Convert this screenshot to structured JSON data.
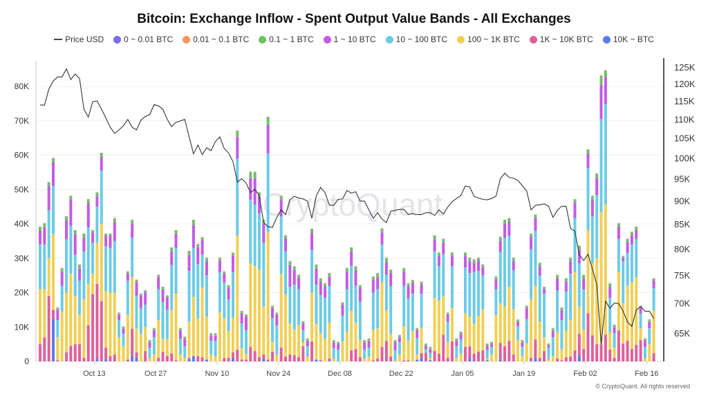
{
  "chart_data": {
    "type": "bar",
    "stacked": true,
    "title": "Bitcoin: Exchange Inflow - Spent Output Value Bands - All Exchanges",
    "legend": [
      {
        "name": "Price USD",
        "color": "#444444",
        "kind": "line"
      },
      {
        "name": "0 ~ 0.01 BTC",
        "color": "#7b6cf0"
      },
      {
        "name": "0.01 ~ 0.1 BTC",
        "color": "#f4975a"
      },
      {
        "name": "0.1 ~ 1 BTC",
        "color": "#6fc165"
      },
      {
        "name": "1 ~ 10 BTC",
        "color": "#c45ae6"
      },
      {
        "name": "10 ~ 100 BTC",
        "color": "#6ccbe6"
      },
      {
        "name": "100 ~ 1K BTC",
        "color": "#f2cf55"
      },
      {
        "name": "1K ~ 10K BTC",
        "color": "#e0609a"
      },
      {
        "name": "10K ~ BTC",
        "color": "#5b7be8"
      }
    ],
    "legend_position": "top",
    "y_left": {
      "ylim": [
        0,
        85000
      ],
      "ticks": [
        0,
        10000,
        20000,
        30000,
        40000,
        50000,
        60000,
        70000,
        80000
      ],
      "tick_labels": [
        "0",
        "10K",
        "20K",
        "30K",
        "40K",
        "50K",
        "60K",
        "70K",
        "80K"
      ]
    },
    "y_right": {
      "scale": "log",
      "ylim": [
        60500,
        128000
      ],
      "ticks": [
        65000,
        70000,
        75000,
        80000,
        85000,
        90000,
        95000,
        100000,
        105000,
        110000,
        115000,
        120000,
        125000
      ],
      "tick_labels": [
        "65K",
        "70K",
        "75K",
        "80K",
        "85K",
        "90K",
        "95K",
        "100K",
        "105K",
        "110K",
        "115K",
        "120K",
        "125K"
      ]
    },
    "x_ticks": [
      {
        "day_index": 13,
        "label": "Oct 13"
      },
      {
        "day_index": 27,
        "label": "Oct 27"
      },
      {
        "day_index": 41,
        "label": "Nov 10"
      },
      {
        "day_index": 55,
        "label": "Nov 24"
      },
      {
        "day_index": 69,
        "label": "Dec 08"
      },
      {
        "day_index": 83,
        "label": "Dec 22"
      },
      {
        "day_index": 97,
        "label": "Jan 05"
      },
      {
        "day_index": 111,
        "label": "Jan 19"
      },
      {
        "day_index": 125,
        "label": "Feb 02"
      },
      {
        "day_index": 139,
        "label": "Feb 16"
      }
    ],
    "grid": true,
    "units": "K BTC",
    "columns": [
      "10K ~ BTC",
      "1K ~ 10K BTC",
      "100 ~ 1K BTC",
      "10 ~ 100 BTC",
      "1 ~ 10 BTC",
      "0.1 ~ 1 BTC"
    ],
    "minor_bands_per_day": {
      "0.01 ~ 0.1 BTC": 0.15,
      "0 ~ 0.01 BTC": 0.03
    },
    "rows": [
      [
        0,
        5,
        16,
        13,
        4,
        1
      ],
      [
        0,
        7,
        14,
        13,
        5,
        1
      ],
      [
        0,
        19,
        11,
        14,
        7,
        1
      ],
      [
        12.5,
        2.5,
        22,
        14,
        7,
        1
      ],
      [
        0,
        0.3,
        6.7,
        5,
        3,
        0.5
      ],
      [
        0,
        0,
        14.5,
        7.5,
        4,
        1
      ],
      [
        0,
        2.6,
        17.4,
        15.5,
        5.5,
        1
      ],
      [
        0,
        4.5,
        21,
        14,
        7.5,
        1
      ],
      [
        0,
        5,
        14,
        12,
        6,
        1
      ],
      [
        0,
        5,
        8.5,
        10,
        3.5,
        1
      ],
      [
        0,
        1,
        17,
        14,
        4,
        1
      ],
      [
        0,
        10.5,
        12,
        16.5,
        7,
        1
      ],
      [
        0,
        19.5,
        6,
        9,
        3,
        0.5
      ],
      [
        0.7,
        21.8,
        12,
        10.5,
        3,
        1
      ],
      [
        0,
        17.5,
        22.5,
        15.5,
        4,
        1
      ],
      [
        0.5,
        3.5,
        16.5,
        13,
        3,
        0.5
      ],
      [
        0,
        1.5,
        18.5,
        13,
        3.5,
        0.5
      ],
      [
        0,
        2,
        18,
        15,
        5.5,
        1
      ],
      [
        0,
        0,
        7,
        5,
        1.5,
        0.5
      ],
      [
        0,
        0,
        4.5,
        3.5,
        1.5,
        0.5
      ],
      [
        0,
        0.5,
        13,
        10,
        2,
        0.5
      ],
      [
        1.5,
        8,
        15,
        11.5,
        4,
        1
      ],
      [
        1,
        1.6,
        7,
        9.5,
        4,
        0.5
      ],
      [
        0,
        0,
        8,
        7.5,
        3.5,
        0.5
      ],
      [
        0,
        3,
        7,
        6.5,
        3.5,
        0.5
      ],
      [
        0,
        0,
        1,
        3,
        1.5,
        0.5
      ],
      [
        0,
        0,
        2,
        5,
        2,
        0.5
      ],
      [
        0,
        1,
        11,
        9,
        3.5,
        0.5
      ],
      [
        0,
        2.8,
        3.7,
        10.8,
        3.5,
        0.7
      ],
      [
        0,
        1.5,
        5,
        8.5,
        3.5,
        0.5
      ],
      [
        0,
        2.3,
        12.7,
        13,
        4,
        1
      ],
      [
        0,
        0.3,
        19.4,
        13.3,
        4,
        1
      ],
      [
        0,
        0,
        2,
        4.6,
        2.4,
        0.5
      ],
      [
        0,
        0,
        1,
        3.4,
        2.1,
        0.5
      ],
      [
        0.5,
        0.5,
        10.6,
        14.7,
        4.7,
        1
      ],
      [
        1.5,
        0,
        17.2,
        14.3,
        6.6,
        1.4
      ],
      [
        0,
        1.5,
        11,
        15.8,
        4.9,
        0.8
      ],
      [
        0,
        1.2,
        20.3,
        9.5,
        4.2,
        0.8
      ],
      [
        0.5,
        0,
        12.5,
        12,
        4.2,
        0.8
      ],
      [
        0,
        0,
        2,
        4,
        1.5,
        0.5
      ],
      [
        0,
        0,
        1.4,
        4.6,
        1.5,
        0.5
      ],
      [
        0,
        0,
        14.3,
        11.7,
        3.3,
        0.7
      ],
      [
        0,
        1,
        11.5,
        10.5,
        2.5,
        0.5
      ],
      [
        0,
        1,
        7.8,
        9.2,
        3.3,
        0.7
      ],
      [
        1,
        1.6,
        10.1,
        13.3,
        4.8,
        0.7
      ],
      [
        0,
        3.4,
        33.2,
        22.4,
        6.3,
        1.7
      ],
      [
        0,
        0.5,
        3.3,
        7.2,
        3,
        0.5
      ],
      [
        0,
        0.5,
        1.7,
        6.8,
        4,
        0.5
      ],
      [
        0,
        4.2,
        24.3,
        18.5,
        6.3,
        1.7
      ],
      [
        0,
        3,
        24.7,
        17.9,
        7.7,
        1.7
      ],
      [
        0,
        1.2,
        25.5,
        16.3,
        5,
        1
      ],
      [
        0.8,
        1.2,
        14,
        18.5,
        5.5,
        1
      ],
      [
        0,
        0.5,
        37,
        23,
        8.3,
        2.2
      ],
      [
        0,
        2.8,
        2.8,
        7,
        2.9,
        0.5
      ],
      [
        0,
        0,
        2,
        8.4,
        3.1,
        0.5
      ],
      [
        0,
        4,
        21.5,
        16.7,
        4.8,
        1
      ],
      [
        0,
        1.4,
        18.1,
        12.5,
        3.8,
        0.7
      ],
      [
        0,
        2,
        9,
        10.7,
        6.3,
        1
      ],
      [
        0,
        1.8,
        7.4,
        13.1,
        4.2,
        1
      ],
      [
        0,
        1.2,
        9.5,
        10.3,
        3.3,
        0.7
      ],
      [
        0,
        4.4,
        1.2,
        3.4,
        2,
        0.5
      ],
      [
        0,
        0,
        1.4,
        3,
        1.6,
        0.5
      ],
      [
        0,
        5.8,
        14.2,
        12.4,
        5,
        1
      ],
      [
        0.5,
        0,
        10.3,
        11.5,
        4.7,
        1
      ],
      [
        0,
        0.3,
        7.9,
        11.1,
        3.8,
        0.9
      ],
      [
        0,
        0,
        6.6,
        11.9,
        3.2,
        0.8
      ],
      [
        0,
        0.8,
        10.5,
        10.7,
        2.7,
        0.8
      ],
      [
        0,
        0,
        0.6,
        3.2,
        1.7,
        0.5
      ],
      [
        0,
        0,
        0,
        3.4,
        1.6,
        0.5
      ],
      [
        0,
        0,
        5.8,
        7.5,
        3.2,
        0.5
      ],
      [
        0,
        0,
        8.6,
        12.4,
        5,
        1
      ],
      [
        0,
        3.2,
        11.6,
        13,
        4.2,
        1
      ],
      [
        0,
        3.6,
        7.6,
        10.8,
        4.5,
        1
      ],
      [
        0,
        1.2,
        5,
        11.1,
        4,
        0.7
      ],
      [
        0,
        0,
        0.8,
        2.6,
        2.1,
        0.5
      ],
      [
        0,
        0,
        1.4,
        2.6,
        2,
        0.5
      ],
      [
        0,
        0.3,
        8.9,
        10.8,
        3.7,
        0.8
      ],
      [
        0,
        0.8,
        8.8,
        11.4,
        3.5,
        1
      ],
      [
        0,
        4.2,
        18.8,
        11,
        3.5,
        1
      ],
      [
        0,
        6,
        8.8,
        10.5,
        3.7,
        1
      ],
      [
        0,
        1.4,
        6.6,
        14,
        3.7,
        0.8
      ],
      [
        0,
        0,
        0.2,
        3,
        2.3,
        0.5
      ],
      [
        0,
        0,
        2,
        3.6,
        1.4,
        0.5
      ],
      [
        0,
        0.3,
        9.9,
        11.8,
        4,
        1
      ],
      [
        0,
        0.3,
        5.7,
        12.3,
        3.5,
        0.7
      ],
      [
        0,
        0,
        8.8,
        10.9,
        3,
        0.8
      ],
      [
        0.5,
        0,
        1.5,
        4.8,
        2.2,
        0.5
      ],
      [
        1,
        1.4,
        7.4,
        9.9,
        2.6,
        0.7
      ],
      [
        0,
        2.5,
        0,
        1,
        1,
        0.5
      ],
      [
        0.3,
        0,
        0.8,
        1.4,
        1,
        0.5
      ],
      [
        0,
        3,
        15.5,
        13.5,
        3.5,
        1
      ],
      [
        0,
        2.2,
        15.5,
        10,
        3,
        0.8
      ],
      [
        0,
        7.8,
        11.1,
        12.3,
        3.3,
        1
      ],
      [
        0,
        1,
        4.6,
        5.9,
        2,
        0.5
      ],
      [
        0,
        5.8,
        9.7,
        12.2,
        3,
        0.8
      ],
      [
        0,
        0,
        1,
        3.4,
        1.6,
        0.5
      ],
      [
        0,
        0,
        2.2,
        4.2,
        1.6,
        0.5
      ],
      [
        0,
        4.2,
        9.8,
        13.3,
        3.4,
        0.8
      ],
      [
        1,
        3.4,
        8.6,
        12.7,
        3.5,
        0.8
      ],
      [
        0,
        2.2,
        8.8,
        15,
        2.7,
        0.8
      ],
      [
        0,
        2.8,
        10.4,
        13.1,
        3,
        0.7
      ],
      [
        0,
        3.2,
        11.8,
        10,
        2.3,
        0.7
      ],
      [
        0.3,
        0,
        0.5,
        2.5,
        1.2,
        0.5
      ],
      [
        0,
        0,
        2,
        2.2,
        0.8,
        0.5
      ],
      [
        0,
        0,
        13.5,
        7.5,
        2.7,
        0.8
      ],
      [
        0.5,
        4.9,
        11.5,
        14.9,
        3.3,
        1
      ],
      [
        0,
        4.4,
        11.6,
        20,
        4,
        1
      ],
      [
        0,
        6,
        15.7,
        14.9,
        4,
        0.9
      ],
      [
        0,
        2,
        13.2,
        11.3,
        2.7,
        0.8
      ],
      [
        0,
        0,
        6.2,
        4,
        1.3,
        0.5
      ],
      [
        0,
        0,
        1.6,
        2.6,
        1.3,
        0.5
      ],
      [
        0,
        0,
        5.2,
        7.1,
        3.2,
        0.5
      ],
      [
        0,
        1,
        17,
        14.6,
        3.7,
        0.7
      ],
      [
        1,
        5.4,
        15.6,
        16,
        3.7,
        0.8
      ],
      [
        0,
        1,
        10.5,
        13.5,
        2.7,
        0.8
      ],
      [
        0,
        3,
        4,
        12.8,
        1.2,
        0.5
      ],
      [
        0,
        0,
        0.5,
        3.5,
        0.7,
        0.3
      ],
      [
        0,
        0,
        1.6,
        5.4,
        1.8,
        0.7
      ],
      [
        0,
        0.8,
        7.6,
        12.2,
        3.6,
        0.8
      ],
      [
        0,
        0.3,
        3.1,
        8.6,
        2.9,
        0.6
      ],
      [
        0,
        1.2,
        7.8,
        11.3,
        2.9,
        0.8
      ],
      [
        0,
        1.4,
        10.6,
        13.5,
        3.6,
        0.9
      ],
      [
        0,
        3.2,
        22.8,
        15.7,
        4.5,
        0.8
      ],
      [
        1.8,
        6.2,
        7.9,
        12.6,
        4,
        1
      ],
      [
        0,
        3.6,
        5.6,
        11.7,
        3.2,
        0.9
      ],
      [
        0,
        14,
        24.2,
        18.1,
        4.2,
        1
      ],
      [
        0,
        7.6,
        20.9,
        13.7,
        4.8,
        1
      ],
      [
        0,
        5,
        25,
        18.4,
        5,
        1.1
      ],
      [
        0,
        5,
        38.4,
        27.1,
        9.9,
        2.6
      ],
      [
        0,
        7.8,
        37.8,
        29.2,
        8,
        1.7
      ],
      [
        0,
        3.4,
        5,
        10.1,
        3.1,
        0.9
      ],
      [
        0,
        1,
        3,
        4.2,
        1.7,
        0.6
      ],
      [
        0,
        9,
        17,
        9.6,
        3.6,
        0.8
      ],
      [
        0,
        5.2,
        11.7,
        12.2,
        1,
        0.4
      ],
      [
        0,
        6,
        16,
        9.5,
        3.2,
        0.8
      ],
      [
        0,
        3.6,
        19.4,
        11,
        2.7,
        0.8
      ],
      [
        0,
        4.8,
        19.7,
        11.1,
        2.6,
        0.8
      ],
      [
        0,
        6.2,
        3.4,
        4.3,
        1.6,
        0.5
      ],
      [
        0,
        0,
        0.8,
        3.4,
        1.8,
        0.5
      ],
      [
        0,
        0,
        5,
        4.6,
        1.9,
        0.5
      ],
      [
        0,
        2.4,
        12.4,
        6.5,
        2.2,
        0.5
      ]
    ],
    "price_usd_k": [
      113.9,
      113.8,
      118.4,
      120.8,
      122,
      122,
      124.4,
      121.2,
      122.9,
      121.5,
      112.7,
      110.5,
      114.8,
      115,
      112.7,
      110.3,
      107.8,
      106.2,
      107.1,
      108.2,
      109.9,
      107.8,
      107.1,
      109.7,
      110.7,
      111.2,
      114,
      113.6,
      112.7,
      109.9,
      108,
      109.1,
      109.5,
      109.9,
      105.3,
      101,
      103.2,
      100.8,
      102.5,
      101.8,
      104.1,
      105.3,
      102.3,
      101.2,
      99.1,
      94.2,
      95,
      94,
      91.8,
      92.6,
      91,
      85.3,
      84.4,
      84.3,
      86.4,
      88,
      87,
      90.2,
      91,
      90.6,
      90.4,
      89.9,
      86.2,
      91.1,
      93,
      91.8,
      89,
      89,
      90.3,
      90.4,
      92.3,
      91.7,
      92,
      89.9,
      89.9,
      88,
      86.2,
      87.4,
      86,
      85.3,
      87.7,
      87.9,
      88.1,
      88.1,
      87,
      87.2,
      87,
      87,
      87.4,
      87.4,
      86.8,
      88,
      87.1,
      88.6,
      89.8,
      90.5,
      91.2,
      93.3,
      93.1,
      91,
      90.6,
      90.3,
      90.2,
      90.5,
      91,
      95,
      96.3,
      95.3,
      95.1,
      94.6,
      93.4,
      92.2,
      88,
      89,
      89.1,
      89.3,
      88.8,
      86.4,
      87.9,
      88.8,
      88.8,
      84.1,
      83.5,
      78.8,
      77.7,
      78.9,
      76.1,
      73.2,
      63.3,
      70.3,
      69.1,
      70,
      69.9,
      68.6,
      66.8,
      66.1,
      68.8,
      69.4,
      68.6,
      68.6,
      67.4
    ]
  },
  "watermark": "CryptoQuant",
  "copyright": "© CryptoQuant. All rights reserved"
}
